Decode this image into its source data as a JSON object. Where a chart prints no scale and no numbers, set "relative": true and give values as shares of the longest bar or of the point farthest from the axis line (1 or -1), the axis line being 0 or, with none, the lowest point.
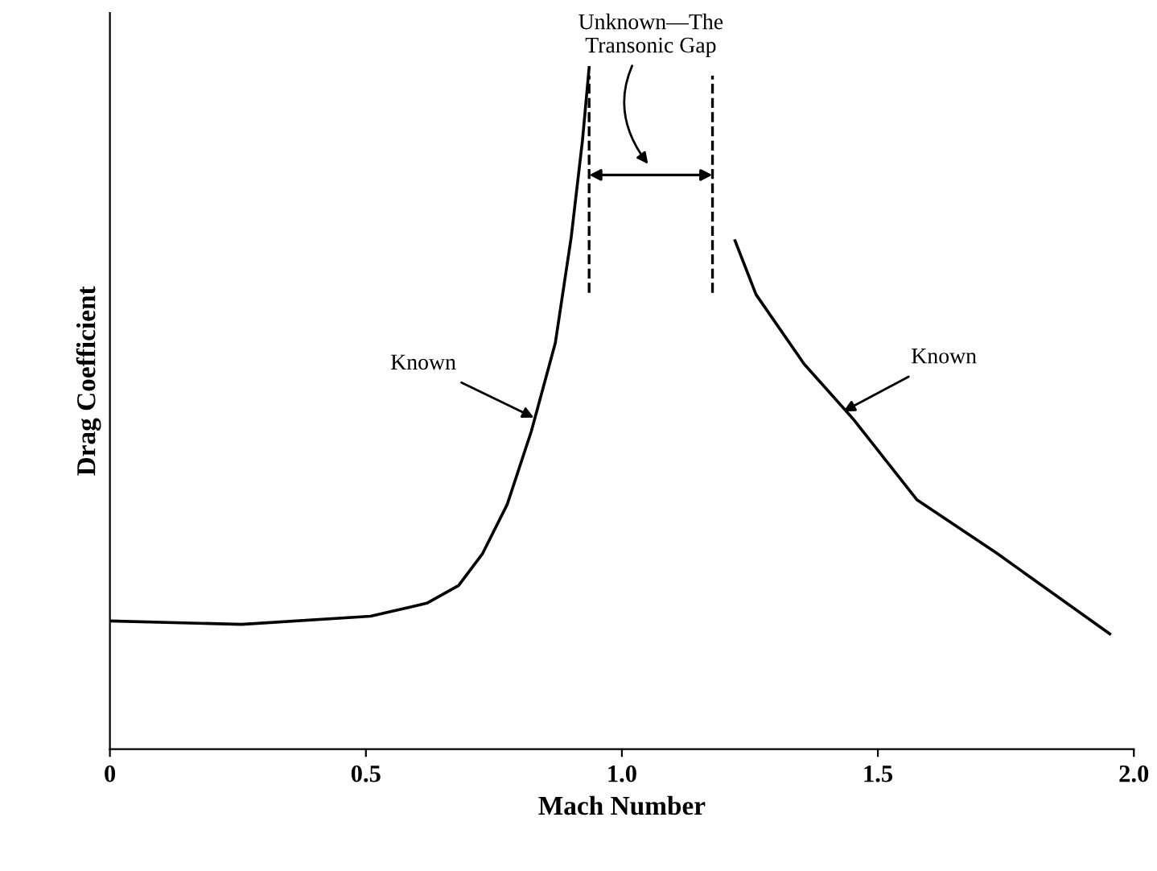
{
  "chart_data": {
    "type": "line",
    "relative": true,
    "xlabel": "Mach Number",
    "ylabel": "Drag Coefficient",
    "xlim": [
      0,
      2.0
    ],
    "xticks": [
      0,
      0.5,
      {
        "value": 1.0,
        "label": "1.0"
      },
      1.5,
      {
        "value": 2.0,
        "label": "2.0"
      }
    ],
    "series": [
      {
        "color": "#000000",
        "x": [
          0.0,
          0.257,
          0.509,
          0.619,
          0.681,
          0.728,
          0.776,
          0.823,
          0.87,
          0.901,
          0.923,
          0.936
        ],
        "values": [
          0.188,
          0.183,
          0.195,
          0.214,
          0.24,
          0.287,
          0.359,
          0.466,
          0.596,
          0.751,
          0.893,
          1.0
        ]
      },
      {
        "color": "#000000",
        "x": [
          1.221,
          1.262,
          1.356,
          1.451,
          1.576,
          1.733,
          1.953
        ],
        "values": [
          0.746,
          0.667,
          0.565,
          0.485,
          0.366,
          0.287,
          0.169
        ]
      }
    ],
    "ref_lines": [
      {
        "axis": "x",
        "value": 0.936,
        "color": "#000000",
        "line_style": "dashed"
      },
      {
        "axis": "x",
        "value": 1.177,
        "color": "#000000",
        "line_style": "dashed"
      }
    ],
    "annotations": [
      "Unknown—The\nTransonic Gap",
      {
        "text": "Known",
        "x": 0.832,
        "y": 0.485
      },
      {
        "text": "Known",
        "x": 1.429,
        "y": 0.494
      }
    ],
    "grid": false,
    "legend": false,
    "marker": "none",
    "line_style": "solid"
  }
}
